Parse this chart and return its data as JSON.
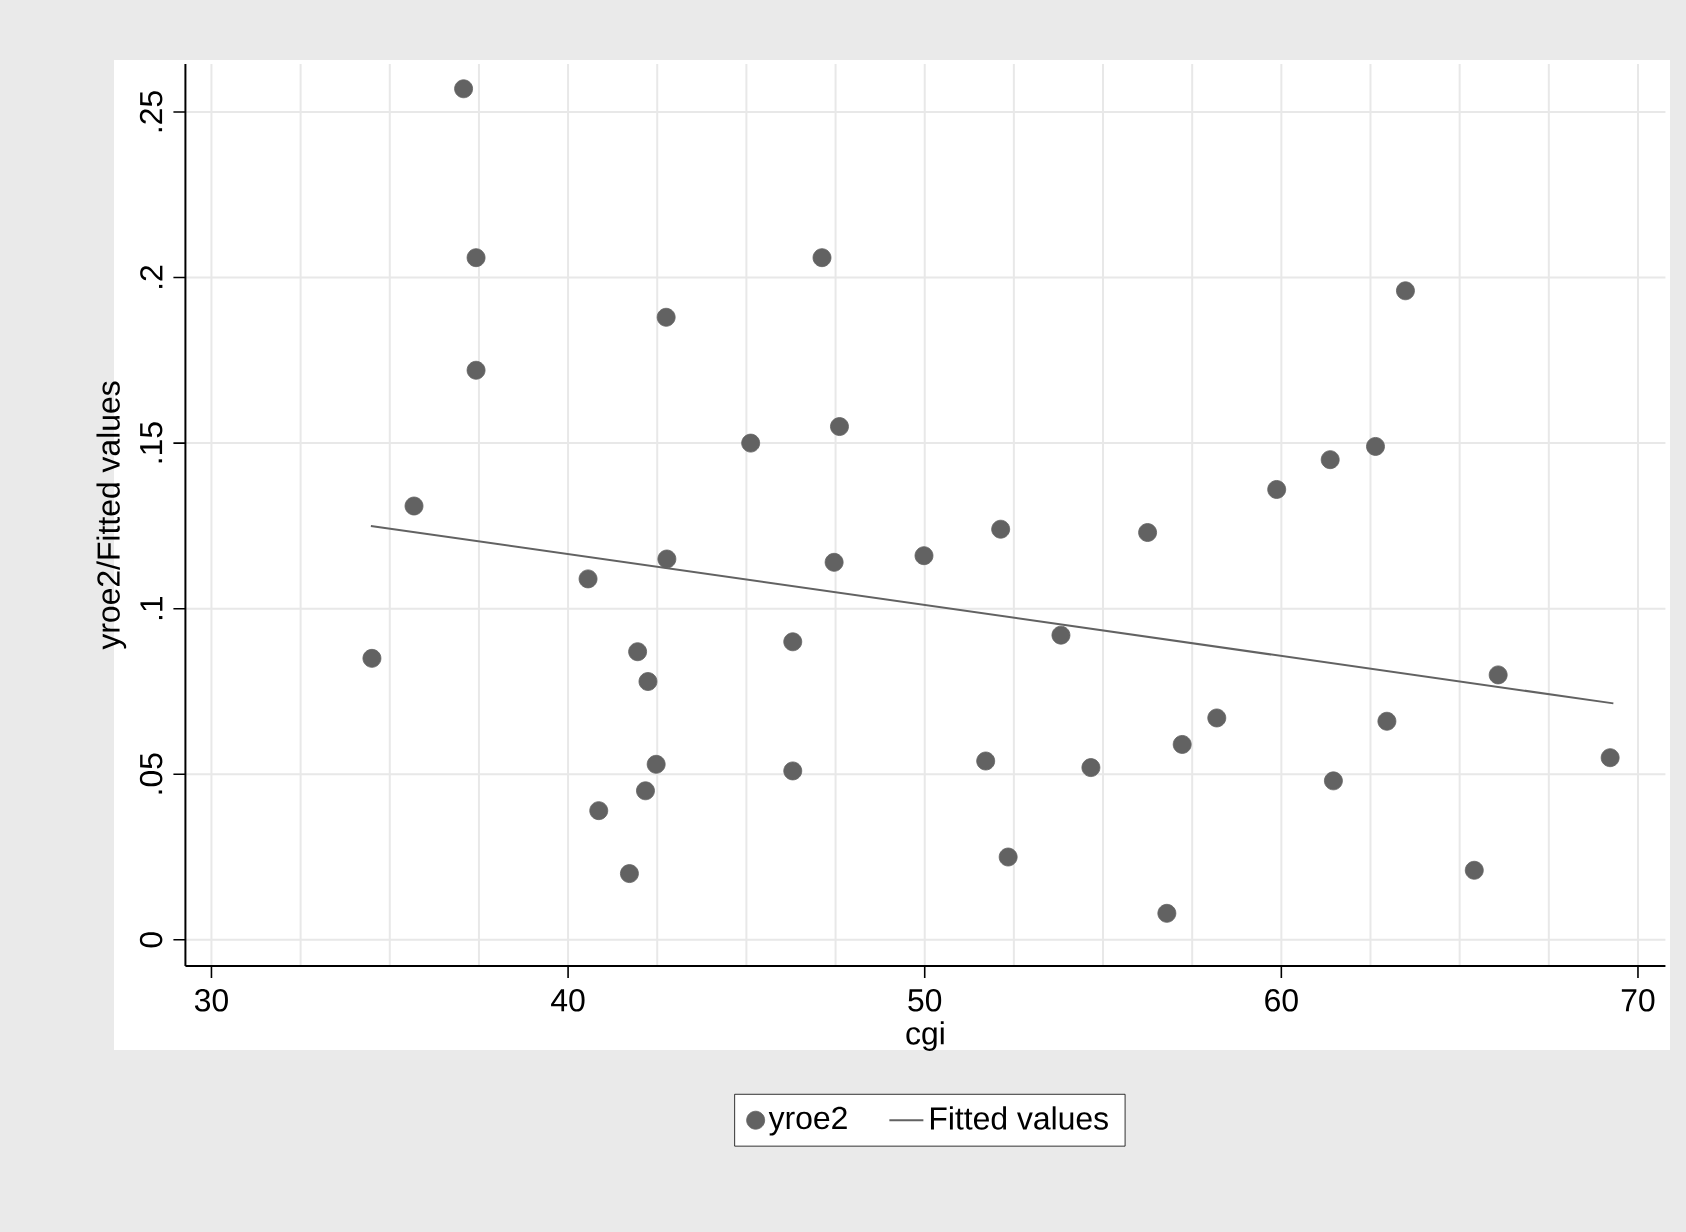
{
  "chart_data": {
    "type": "scatter",
    "xlabel": "cgi",
    "ylabel": "yroe2/Fitted values",
    "xlim": [
      29.27,
      70.77
    ],
    "ylim": [
      -0.0079,
      0.2645
    ],
    "xticks": [
      30,
      40,
      50,
      60,
      70
    ],
    "yticks": [
      0,
      {
        "value": 0.05,
        "label": ".05"
      },
      {
        "value": 0.1,
        "label": ".1"
      },
      {
        "value": 0.15,
        "label": ".15"
      },
      {
        "value": 0.2,
        "label": ".2"
      },
      {
        "value": 0.25,
        "label": ".25"
      }
    ],
    "grid": true,
    "legend": "bottom",
    "series": [
      {
        "name": "yroe2",
        "marker": "circle",
        "color": "#626262",
        "x": [
          37.07,
          37.42,
          37.42,
          35.68,
          42.75,
          47.12,
          45.12,
          47.61,
          40.56,
          42.77,
          47.46,
          34.5,
          41.95,
          42.24,
          42.47,
          42.17,
          40.86,
          41.72,
          46.3,
          46.3,
          49.98,
          52.13,
          56.25,
          59.87,
          61.37,
          62.64,
          63.48,
          53.82,
          51.71,
          52.34,
          54.66,
          56.79,
          57.22,
          58.19,
          61.46,
          62.96,
          65.41,
          66.08,
          69.22
        ],
        "values": [
          0.257,
          0.206,
          0.172,
          0.131,
          0.188,
          0.206,
          0.15,
          0.155,
          0.109,
          0.115,
          0.114,
          0.085,
          0.087,
          0.078,
          0.053,
          0.045,
          0.039,
          0.02,
          0.09,
          0.051,
          0.116,
          0.124,
          0.123,
          0.136,
          0.145,
          0.149,
          0.196,
          0.092,
          0.054,
          0.025,
          0.052,
          0.008,
          0.059,
          0.067,
          0.048,
          0.066,
          0.021,
          0.08,
          0.055
        ]
      },
      {
        "name": "Fitted values",
        "type": "line",
        "color": "#626262",
        "line_style": "solid",
        "x": [
          34.47,
          69.31
        ],
        "values": [
          0.125,
          0.0714
        ]
      }
    ]
  }
}
